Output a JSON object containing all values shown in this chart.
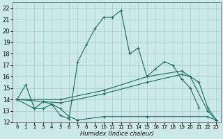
{
  "xlabel": "Humidex (Indice chaleur)",
  "background_color": "#cce9e9",
  "grid_color": "#aacfcf",
  "line_color": "#1a6b5a",
  "xlim": [
    -0.5,
    23.5
  ],
  "ylim": [
    12,
    22.5
  ],
  "xticks": [
    0,
    1,
    2,
    3,
    4,
    5,
    6,
    7,
    8,
    9,
    10,
    11,
    12,
    13,
    14,
    15,
    16,
    17,
    18,
    19,
    20,
    21,
    22,
    23
  ],
  "yticks": [
    12,
    13,
    14,
    15,
    16,
    17,
    18,
    19,
    20,
    21,
    22
  ],
  "series": [
    {
      "x": [
        0,
        1,
        2,
        3,
        4,
        5,
        6,
        7,
        8,
        9,
        10,
        11,
        12,
        13,
        14,
        15,
        16,
        17,
        18,
        19,
        20,
        21
      ],
      "y": [
        14.0,
        15.3,
        13.2,
        13.8,
        13.6,
        12.6,
        12.3,
        17.3,
        18.8,
        20.2,
        21.2,
        21.2,
        21.8,
        18.0,
        18.5,
        16.0,
        16.7,
        17.3,
        17.0,
        15.8,
        15.0,
        13.3
      ]
    },
    {
      "x": [
        0,
        5,
        10,
        15,
        19,
        21,
        22,
        23
      ],
      "y": [
        14.0,
        14.0,
        14.8,
        16.0,
        16.5,
        15.5,
        13.3,
        12.2
      ]
    },
    {
      "x": [
        0,
        5,
        10,
        15,
        19,
        20,
        22,
        23
      ],
      "y": [
        14.0,
        13.7,
        14.5,
        15.5,
        16.2,
        16.0,
        13.0,
        12.2
      ]
    },
    {
      "x": [
        0,
        2,
        3,
        4,
        5,
        6,
        7,
        10,
        15,
        22,
        23
      ],
      "y": [
        14.0,
        13.2,
        13.2,
        13.6,
        13.2,
        12.5,
        12.2,
        12.5,
        12.5,
        12.5,
        12.2
      ]
    }
  ]
}
